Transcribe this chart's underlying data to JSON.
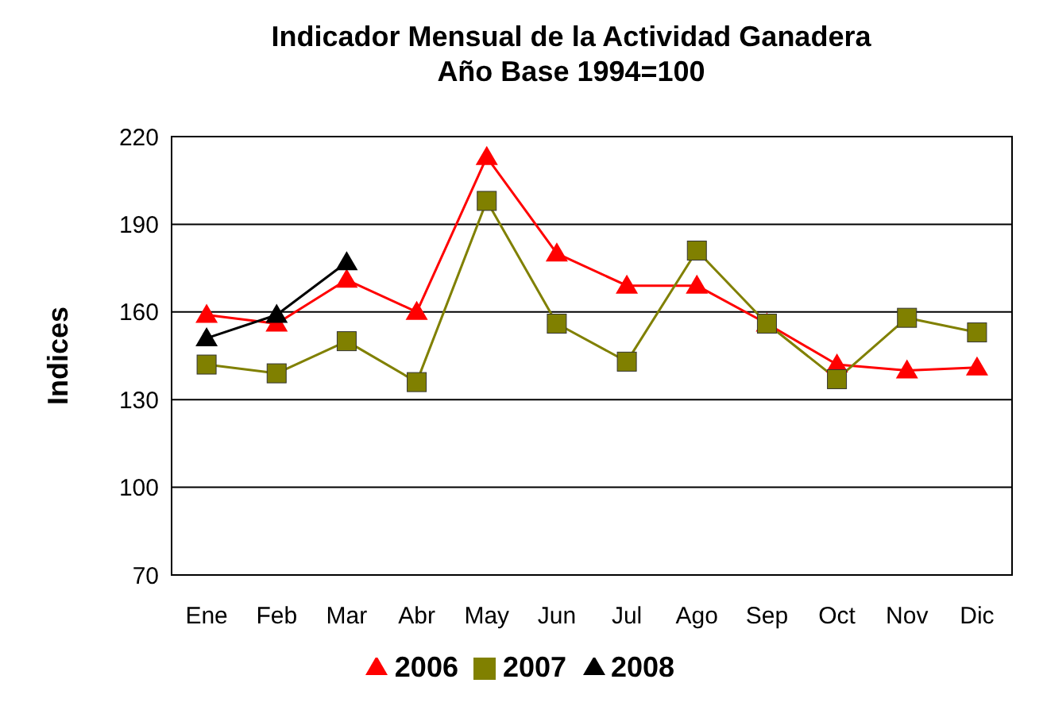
{
  "chart_data": {
    "type": "line",
    "title": "Indicador Mensual de la Actividad Ganadera",
    "subtitle": "Año Base 1994=100",
    "ylabel": "Indices",
    "categories": [
      "Ene",
      "Feb",
      "Mar",
      "Abr",
      "May",
      "Jun",
      "Jul",
      "Ago",
      "Sep",
      "Oct",
      "Nov",
      "Dic"
    ],
    "series": [
      {
        "name": "2006",
        "color": "#ff0000",
        "marker": "triangle",
        "values": [
          159,
          156,
          171,
          160,
          213,
          180,
          169,
          169,
          156,
          142,
          140,
          141
        ]
      },
      {
        "name": "2007",
        "color": "#808000",
        "marker": "square",
        "values": [
          142,
          139,
          150,
          136,
          198,
          156,
          143,
          181,
          156,
          137,
          158,
          153
        ]
      },
      {
        "name": "2008",
        "color": "#000000",
        "marker": "triangle",
        "values": [
          151,
          159,
          177,
          null,
          null,
          null,
          null,
          null,
          null,
          null,
          null,
          null
        ]
      }
    ],
    "ylim": [
      70,
      220
    ],
    "yticks": [
      70,
      100,
      130,
      160,
      190,
      220
    ],
    "grid": "y",
    "legend": "bottom"
  }
}
